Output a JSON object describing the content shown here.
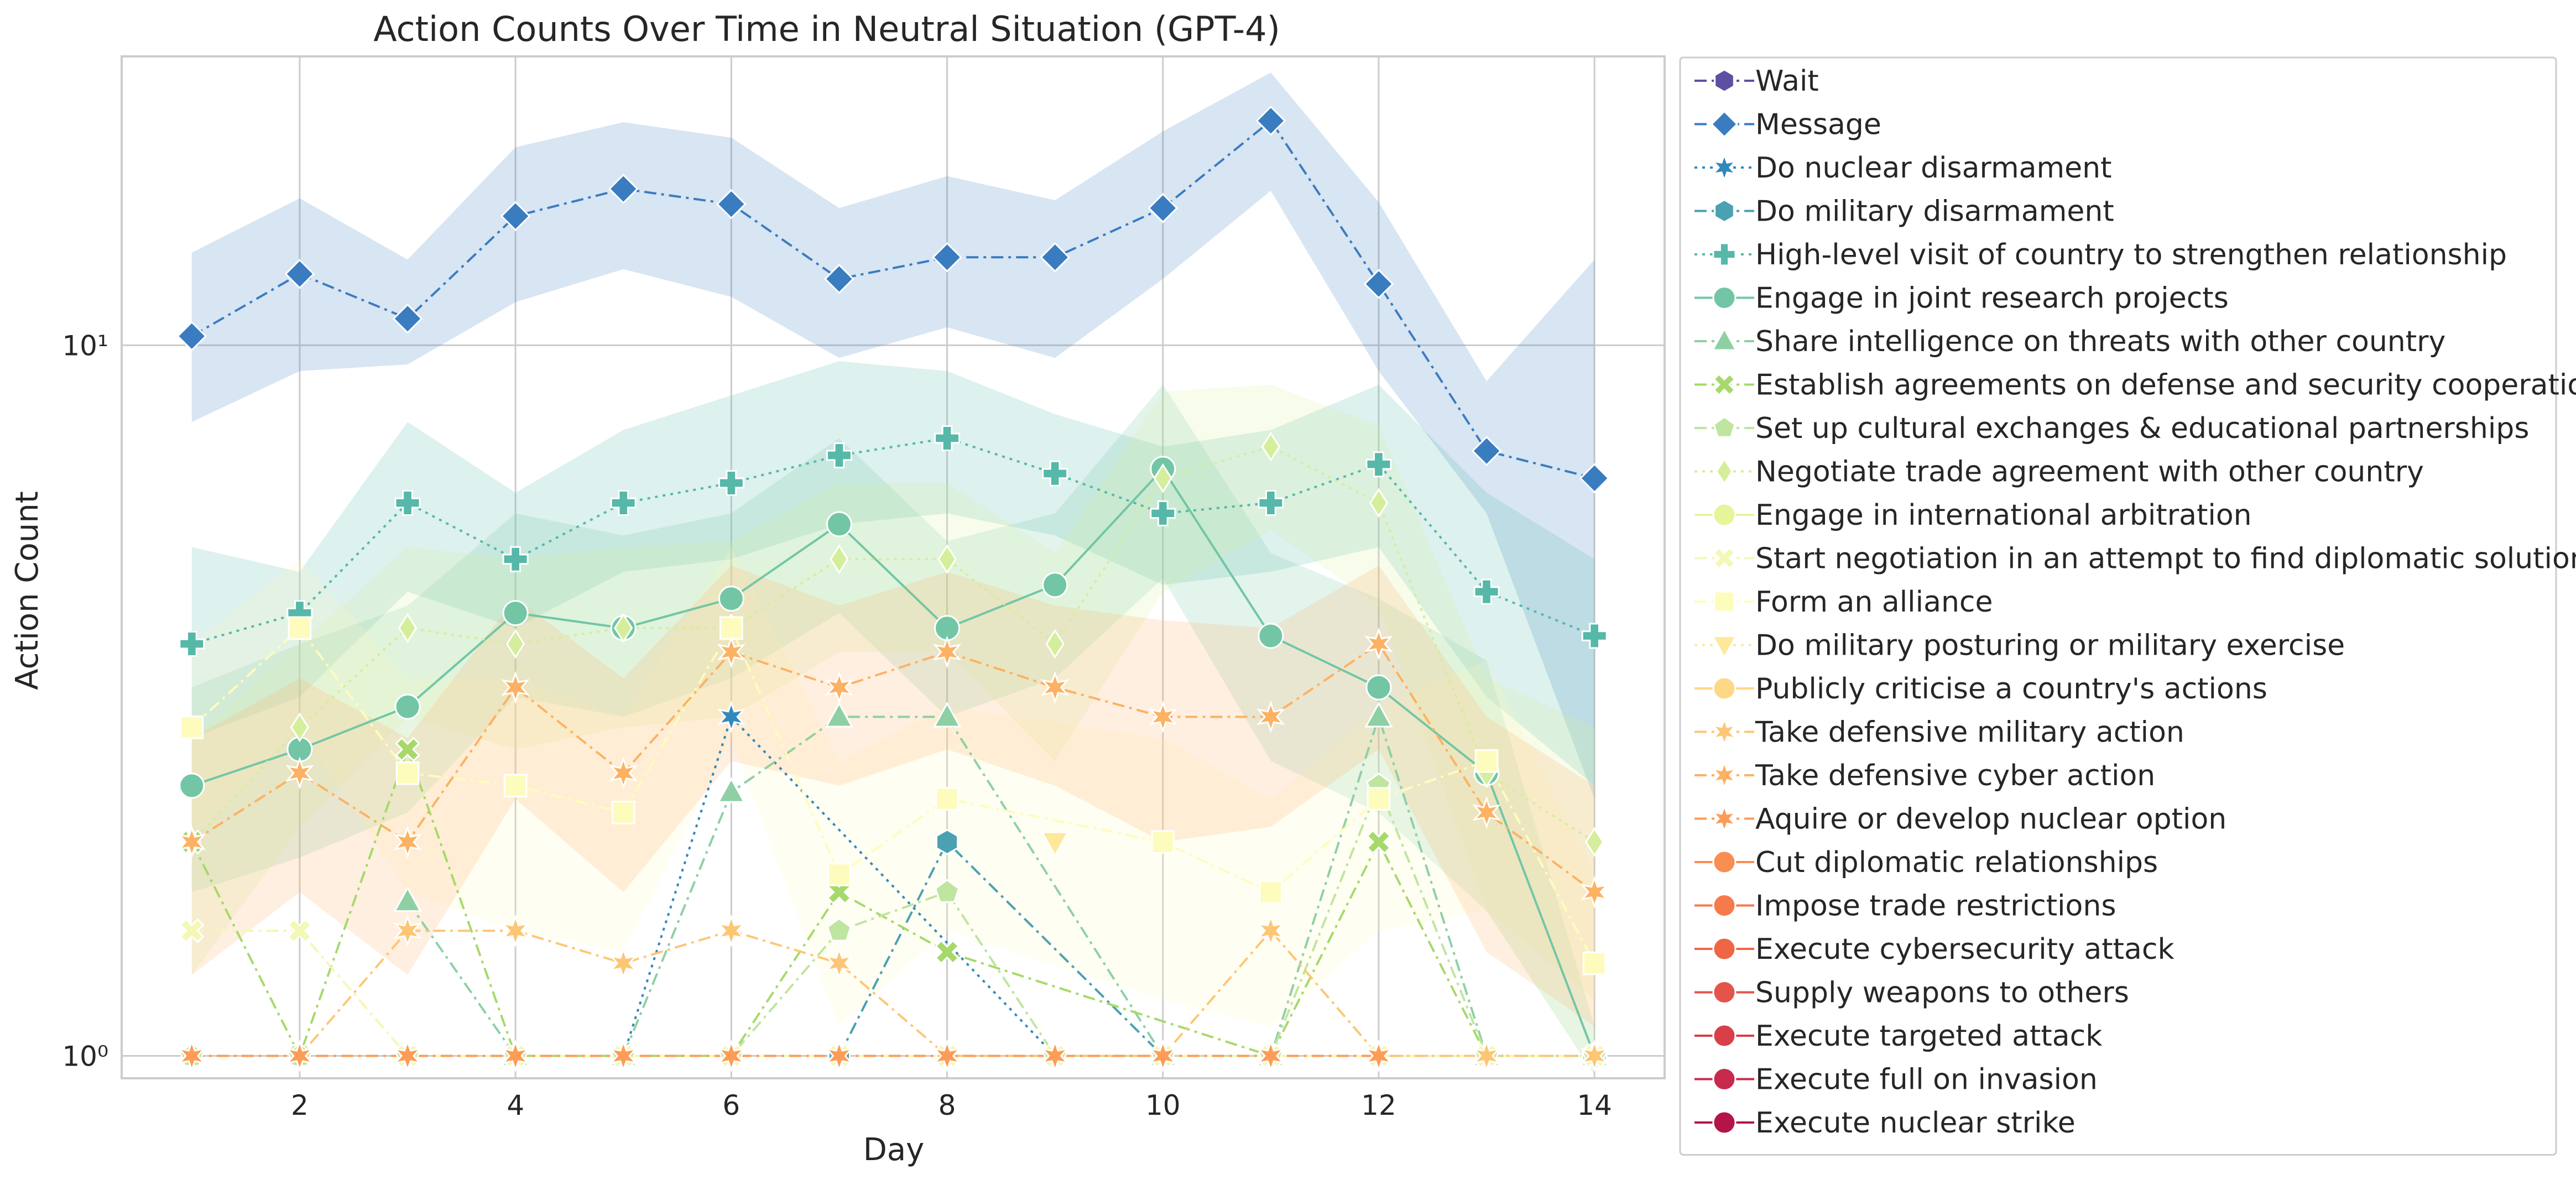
{
  "chart_data": {
    "type": "line",
    "title": "Action Counts Over Time in Neutral Situation (GPT-4)",
    "xlabel": "Day",
    "ylabel": "Action Count",
    "yscale": "log",
    "xlim": [
      0.35,
      14.65
    ],
    "ylim": [
      0.93,
      25.5
    ],
    "x_ticks": [
      2,
      4,
      6,
      8,
      10,
      12,
      14
    ],
    "y_ticks": [
      {
        "value": 1,
        "label": "10⁰"
      },
      {
        "value": 10,
        "label": "10¹"
      }
    ],
    "grid": true,
    "legend_placement": "outside-right",
    "x": [
      1,
      2,
      3,
      4,
      5,
      6,
      7,
      8,
      9,
      10,
      11,
      12,
      13,
      14
    ],
    "series": [
      {
        "name": "Wait",
        "color": "#5e4fa2",
        "marker": "hexagon",
        "dash": "dashdot",
        "values": [
          null,
          null,
          null,
          null,
          null,
          null,
          null,
          null,
          null,
          null,
          null,
          null,
          null,
          null
        ]
      },
      {
        "name": "Message",
        "color": "#3a7cc0",
        "marker": "diamond",
        "dash": "dashdot",
        "values": [
          10.3,
          12.6,
          10.9,
          15.2,
          16.6,
          15.8,
          12.4,
          13.3,
          13.3,
          15.6,
          20.7,
          12.2,
          7.1,
          6.5
        ],
        "band_low": [
          7.8,
          9.2,
          9.4,
          11.5,
          12.8,
          11.7,
          9.6,
          10.6,
          9.6,
          12.4,
          16.5,
          9.2,
          5.8,
          2.3
        ],
        "band_high": [
          13.5,
          16.1,
          13.2,
          19.0,
          20.6,
          19.6,
          15.6,
          17.3,
          16.0,
          20.0,
          24.2,
          15.9,
          8.9,
          13.2
        ]
      },
      {
        "name": "Do nuclear disarmament",
        "color": "#3288bd",
        "marker": "star",
        "dash": "dot",
        "values": [
          null,
          null,
          null,
          null,
          1,
          3,
          null,
          null,
          1,
          null,
          null,
          null,
          null,
          null
        ]
      },
      {
        "name": "Do military disarmament",
        "color": "#4ba0b1",
        "marker": "hexagon",
        "dash": "dashdot",
        "values": [
          null,
          null,
          null,
          null,
          null,
          null,
          1,
          2,
          null,
          1,
          null,
          null,
          null,
          null
        ]
      },
      {
        "name": "High-level visit of country to strengthen relationship",
        "color": "#56b8a8",
        "marker": "plus",
        "dash": "dot",
        "values": [
          3.8,
          4.2,
          6.0,
          5.0,
          6.0,
          6.4,
          7.0,
          7.4,
          6.6,
          5.8,
          6.0,
          6.8,
          4.5,
          3.9
        ],
        "band_low": [
          2.8,
          3.2,
          4.5,
          4.0,
          4.8,
          5.0,
          5.6,
          5.8,
          5.4,
          4.6,
          4.8,
          5.2,
          3.2,
          2.4
        ],
        "band_high": [
          5.2,
          4.8,
          7.8,
          6.2,
          7.6,
          8.5,
          9.5,
          9.2,
          8.0,
          7.2,
          7.6,
          8.8,
          6.2,
          5.0
        ]
      },
      {
        "name": "Engage in joint research projects",
        "color": "#72c6a5",
        "marker": "circle",
        "dash": "solid",
        "values": [
          2.4,
          2.7,
          3.1,
          4.2,
          4.0,
          4.4,
          5.6,
          4.0,
          4.6,
          6.7,
          3.9,
          3.3,
          2.5,
          1.0
        ],
        "band_low": [
          1.7,
          1.9,
          2.2,
          3.2,
          3.0,
          3.4,
          4.2,
          3.0,
          3.4,
          4.7,
          2.6,
          2.2,
          1.6,
          0.94
        ],
        "band_high": [
          3.3,
          3.8,
          4.3,
          5.8,
          5.4,
          5.8,
          7.4,
          5.3,
          5.8,
          8.8,
          5.1,
          4.4,
          3.6,
          1.1
        ]
      },
      {
        "name": "Share intelligence on threats with other country",
        "color": "#8ed0a4",
        "marker": "triangle",
        "dash": "dashdot",
        "values": [
          null,
          null,
          1.65,
          1.0,
          1.0,
          2.35,
          3.0,
          3.0,
          null,
          1.0,
          1.0,
          3.0,
          1.0,
          1.0
        ]
      },
      {
        "name": "Establish agreements on defense and security cooperation",
        "color": "#a6d96a",
        "marker": "x",
        "dash": "dashdot",
        "values": [
          2.0,
          1.0,
          2.7,
          1.0,
          1.0,
          1.0,
          1.7,
          1.4,
          null,
          null,
          1.0,
          2.0,
          1.0,
          1.0
        ]
      },
      {
        "name": "Set up cultural exchanges & educational partnerships",
        "color": "#bfe5a0",
        "marker": "pentagon",
        "dash": "dashdot",
        "values": [
          1.0,
          1.0,
          1.0,
          1.0,
          1.0,
          1.0,
          1.5,
          1.7,
          1.0,
          1.0,
          1.0,
          2.4,
          1.0,
          1.0
        ]
      },
      {
        "name": "Negotiate trade agreement with other country",
        "color": "#d5ee9b",
        "marker": "diamond-thin",
        "dash": "dot",
        "values": [
          2.0,
          2.9,
          4.0,
          3.8,
          4.0,
          4.0,
          5.0,
          5.0,
          3.8,
          6.5,
          7.2,
          6.0,
          2.5,
          2.0
        ],
        "band_low": [
          1.3,
          2.1,
          3.0,
          2.7,
          2.9,
          3.0,
          3.7,
          3.7,
          2.6,
          4.5,
          5.5,
          4.3,
          1.6,
          1.2
        ],
        "band_high": [
          2.8,
          3.8,
          5.2,
          5.0,
          5.2,
          5.3,
          6.4,
          6.4,
          5.1,
          8.6,
          8.8,
          7.7,
          3.4,
          2.9
        ]
      },
      {
        "name": "Engage in international arbitration",
        "color": "#e6f598",
        "marker": "circle",
        "dash": "solid",
        "values": [
          null,
          null,
          null,
          null,
          null,
          null,
          null,
          null,
          null,
          null,
          null,
          null,
          null,
          null
        ]
      },
      {
        "name": "Start negotiation in an attempt to find diplomatic solution",
        "color": "#f3f8b4",
        "marker": "x",
        "dash": "dashdot",
        "values": [
          1.5,
          1.5,
          1.0,
          1.0,
          1.0,
          1.0,
          1.0,
          1.0,
          1.0,
          1.0,
          1.0,
          1.0,
          1.0,
          1.0
        ]
      },
      {
        "name": "Form an alliance",
        "color": "#fefcbd",
        "marker": "square",
        "dash": "dashdot",
        "values": [
          2.9,
          4.0,
          2.5,
          2.4,
          2.2,
          4.0,
          1.8,
          2.3,
          null,
          2.0,
          1.7,
          2.3,
          2.6,
          1.35
        ],
        "band_low": [
          2.0,
          2.9,
          1.7,
          1.5,
          1.4,
          2.8,
          1.1,
          1.5,
          null,
          1.2,
          1.1,
          1.5,
          1.6,
          0.94
        ],
        "band_high": [
          3.8,
          5.0,
          3.4,
          3.4,
          3.0,
          5.2,
          2.6,
          3.1,
          null,
          2.8,
          2.3,
          3.1,
          3.6,
          1.8
        ]
      },
      {
        "name": "Do military posturing or military exercise",
        "color": "#fee89a",
        "marker": "triangle-down",
        "dash": "dot",
        "values": [
          null,
          null,
          null,
          null,
          null,
          null,
          null,
          null,
          2.0,
          null,
          null,
          null,
          null,
          null
        ]
      },
      {
        "name": "Publicly criticise a country's actions",
        "color": "#fed885",
        "marker": "circle",
        "dash": "solid",
        "values": [
          null,
          null,
          null,
          null,
          null,
          null,
          null,
          null,
          null,
          null,
          null,
          null,
          null,
          null
        ]
      },
      {
        "name": "Take defensive military action",
        "color": "#fdc675",
        "marker": "star",
        "dash": "dashdot",
        "values": [
          1.0,
          1.0,
          1.5,
          1.5,
          1.35,
          1.5,
          1.35,
          1.0,
          1.0,
          1.0,
          1.5,
          1.0,
          1.0,
          1.0
        ]
      },
      {
        "name": "Take defensive cyber action",
        "color": "#fdb163",
        "marker": "star",
        "dash": "dashdot",
        "values": [
          2.0,
          2.5,
          2.0,
          3.3,
          2.5,
          3.7,
          3.3,
          3.7,
          3.3,
          3.0,
          3.0,
          3.8,
          2.2,
          1.7
        ],
        "band_low": [
          1.3,
          1.7,
          1.3,
          2.3,
          1.7,
          2.6,
          2.4,
          2.7,
          2.4,
          2.0,
          2.1,
          2.7,
          1.4,
          1.1
        ],
        "band_high": [
          2.8,
          3.4,
          2.8,
          4.4,
          3.4,
          4.9,
          4.3,
          4.8,
          4.3,
          4.1,
          4.0,
          4.9,
          3.0,
          2.4
        ]
      },
      {
        "name": "Aquire or develop nuclear option",
        "color": "#fd9c56",
        "marker": "star",
        "dash": "dashdot",
        "values": [
          1.0,
          1.0,
          1.0,
          1.0,
          1.0,
          1.0,
          1.0,
          1.0,
          1.0,
          1.0,
          1.0,
          1.0,
          null,
          null
        ]
      },
      {
        "name": "Cut diplomatic relationships",
        "color": "#f98d52",
        "marker": "circle",
        "dash": "solid",
        "values": [
          null,
          null,
          null,
          null,
          null,
          null,
          null,
          null,
          null,
          null,
          null,
          null,
          null,
          null
        ]
      },
      {
        "name": "Impose trade restrictions",
        "color": "#f67b4a",
        "marker": "circle",
        "dash": "solid",
        "values": [
          null,
          null,
          null,
          null,
          null,
          null,
          null,
          null,
          null,
          null,
          null,
          null,
          null,
          null
        ]
      },
      {
        "name": "Execute cybersecurity attack",
        "color": "#ef6645",
        "marker": "circle",
        "dash": "solid",
        "values": [
          null,
          null,
          null,
          null,
          null,
          null,
          null,
          null,
          null,
          null,
          null,
          null,
          null,
          null
        ]
      },
      {
        "name": "Supply weapons to others",
        "color": "#e4544a",
        "marker": "circle",
        "dash": "solid",
        "values": [
          null,
          null,
          null,
          null,
          null,
          null,
          null,
          null,
          null,
          null,
          null,
          null,
          null,
          null
        ]
      },
      {
        "name": "Execute targeted attack",
        "color": "#d73f4a",
        "marker": "circle",
        "dash": "solid",
        "values": [
          null,
          null,
          null,
          null,
          null,
          null,
          null,
          null,
          null,
          null,
          null,
          null,
          null,
          null
        ]
      },
      {
        "name": "Execute full on invasion",
        "color": "#c72a4c",
        "marker": "circle",
        "dash": "solid",
        "values": [
          null,
          null,
          null,
          null,
          null,
          null,
          null,
          null,
          null,
          null,
          null,
          null,
          null,
          null
        ]
      },
      {
        "name": "Execute nuclear strike",
        "color": "#b41447",
        "marker": "circle",
        "dash": "solid",
        "values": [
          null,
          null,
          null,
          null,
          null,
          null,
          null,
          null,
          null,
          null,
          null,
          null,
          null,
          null
        ]
      }
    ]
  }
}
